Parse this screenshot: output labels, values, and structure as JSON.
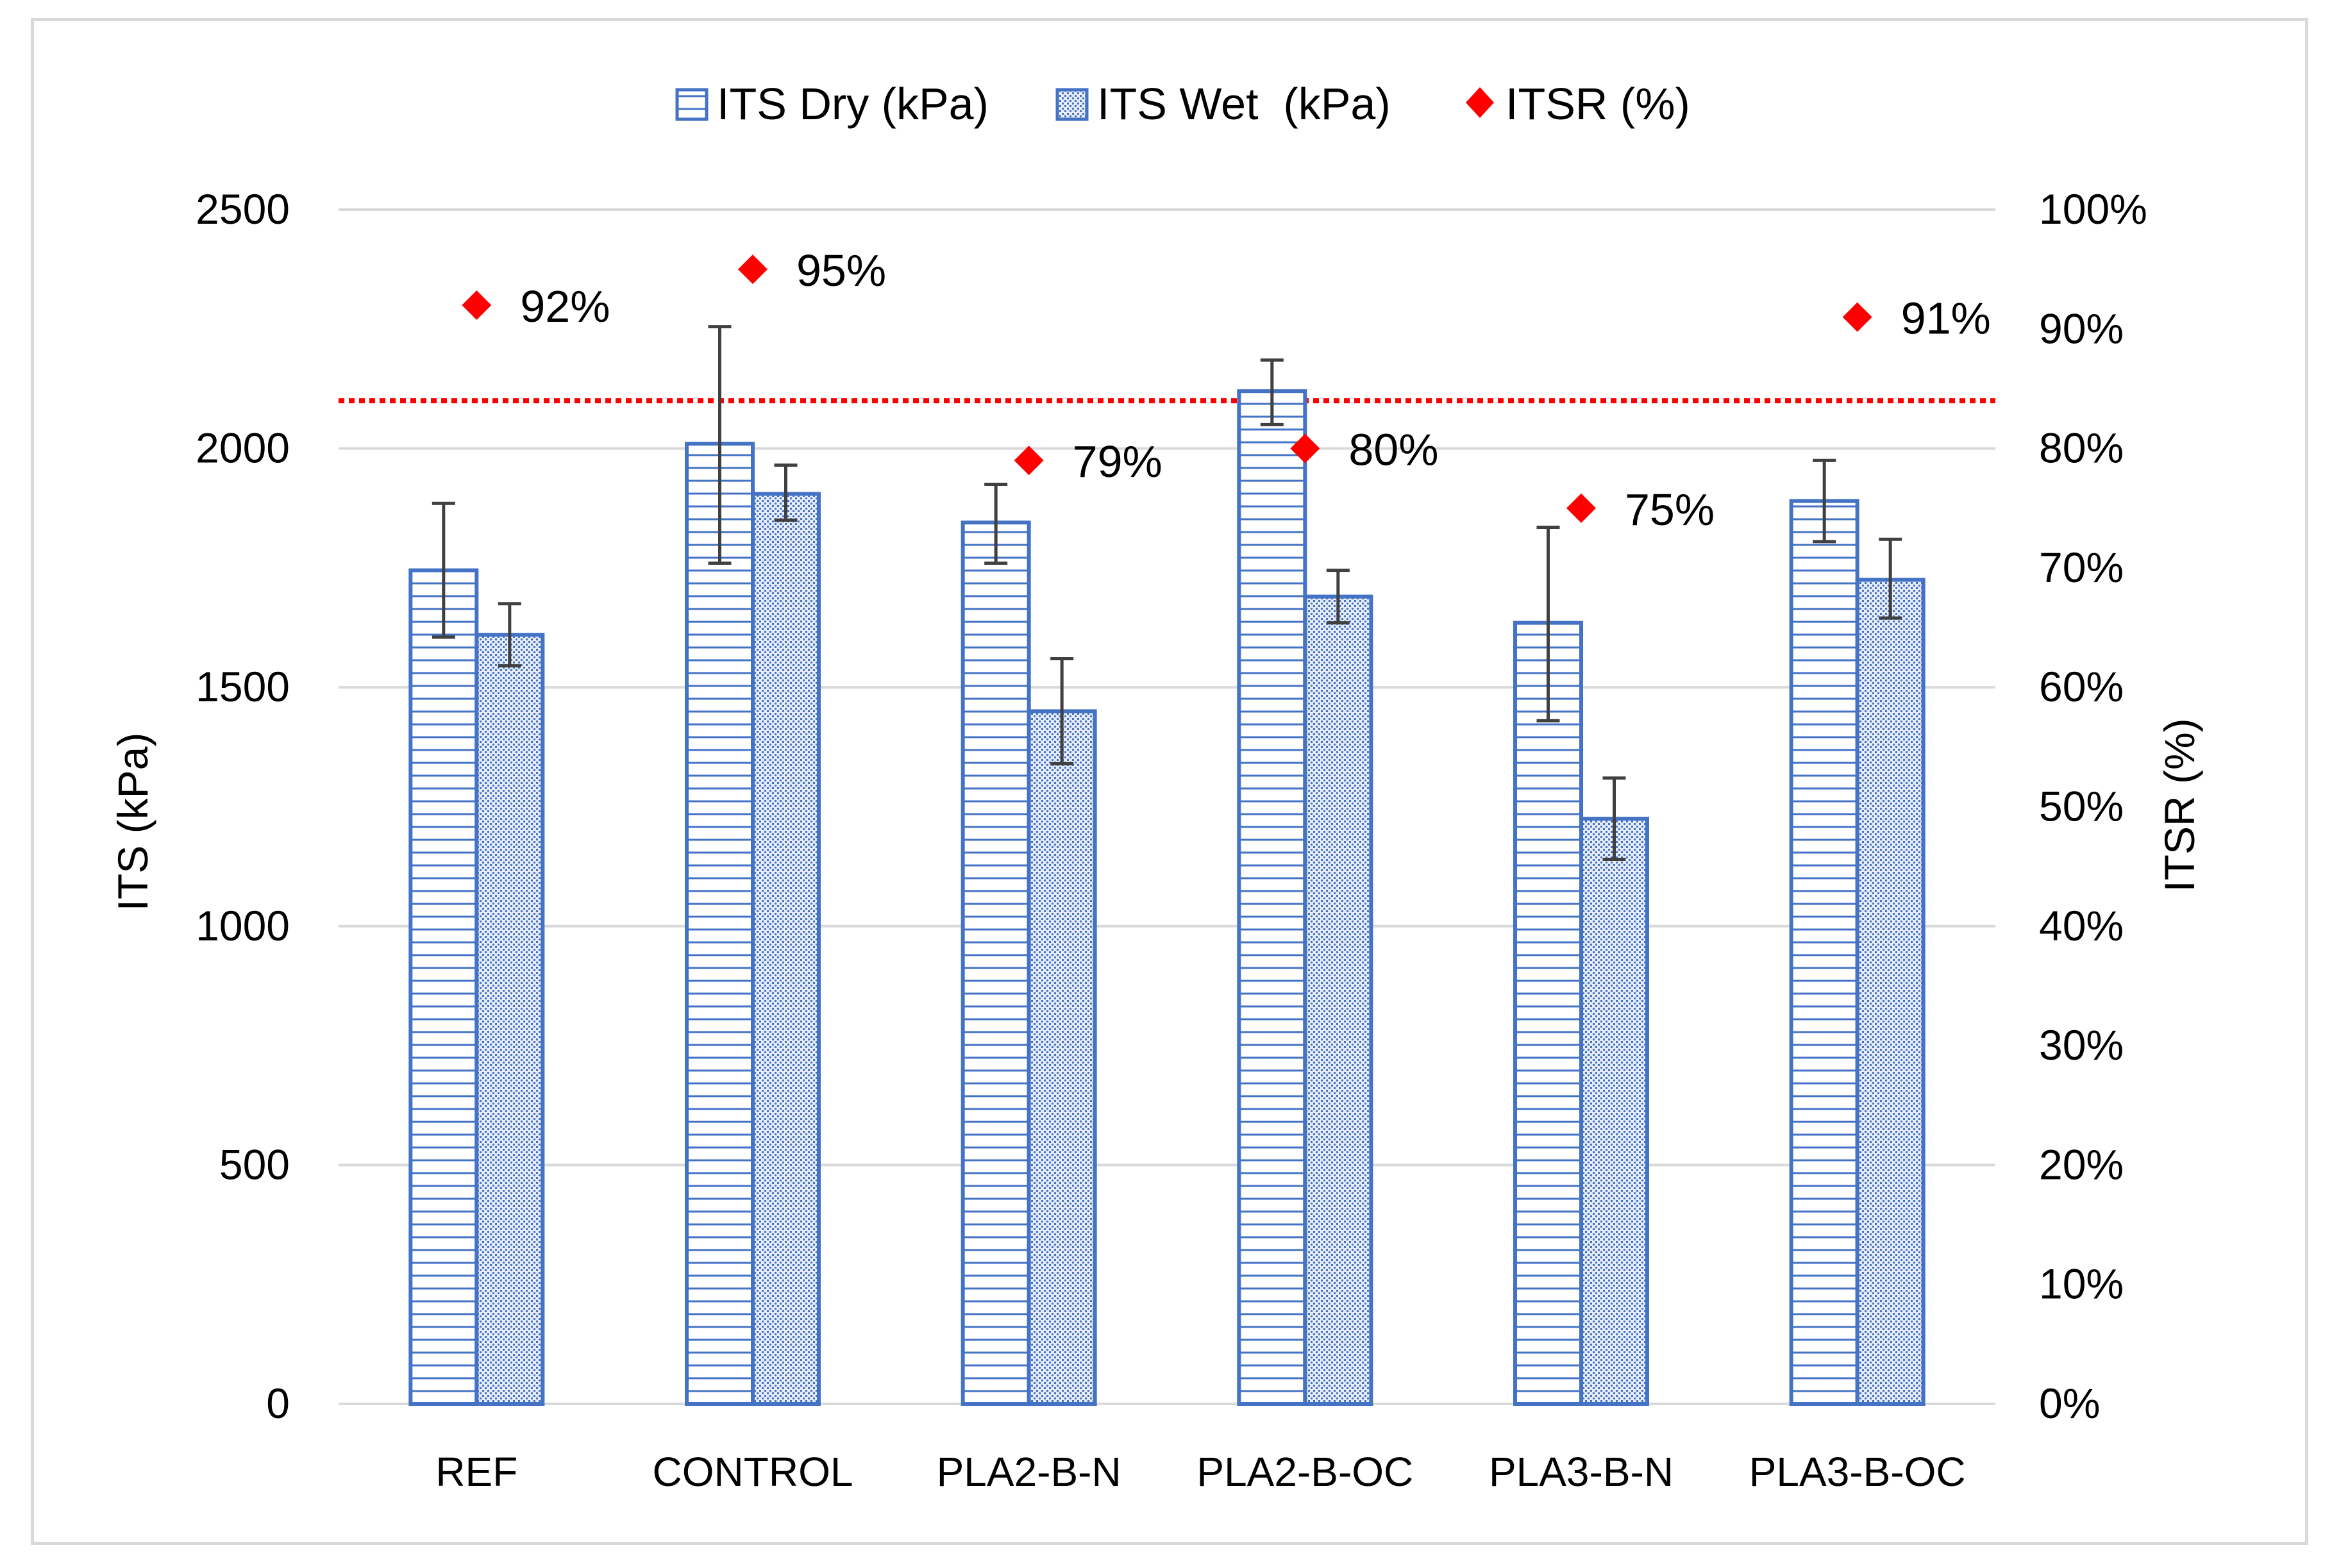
{
  "chart_data": {
    "type": "bar",
    "title": "",
    "categories": [
      "REF",
      "CONTROL",
      "PLA2-B-N",
      "PLA2-B-OC",
      "PLA3-B-N",
      "PLA3-B-OC"
    ],
    "series": [
      {
        "name": "ITS Dry (kPa)",
        "axis": "left",
        "pattern": "horizontal-lines",
        "values": [
          1745,
          2010,
          1845,
          2120,
          1635,
          1890
        ],
        "error_low": [
          1605,
          1760,
          1760,
          2050,
          1430,
          1805
        ],
        "error_high": [
          1885,
          2255,
          1925,
          2185,
          1835,
          1975
        ]
      },
      {
        "name": "ITS Wet  (kPa)",
        "axis": "left",
        "pattern": "dots",
        "values": [
          1610,
          1905,
          1450,
          1690,
          1225,
          1725
        ],
        "error_low": [
          1545,
          1850,
          1340,
          1635,
          1140,
          1645
        ],
        "error_high": [
          1675,
          1965,
          1560,
          1745,
          1310,
          1810
        ]
      },
      {
        "name": "ITSR (%)",
        "axis": "right",
        "marker": "diamond",
        "values": [
          92,
          95,
          79,
          80,
          75,
          91
        ],
        "labels": [
          "92%",
          "95%",
          "79%",
          "80%",
          "75%",
          "91%"
        ]
      }
    ],
    "threshold_line": {
      "axis": "right",
      "value": 84,
      "style": "dotted"
    },
    "y_left": {
      "label": "ITS (kPa)",
      "ylim": [
        0,
        2500
      ],
      "ticks": [
        "0",
        "500",
        "1000",
        "1500",
        "2000",
        "2500"
      ]
    },
    "y_right": {
      "label": "ITSR (%)",
      "ylim": [
        0,
        100
      ],
      "ticks": [
        "0%",
        "10%",
        "20%",
        "30%",
        "40%",
        "50%",
        "60%",
        "70%",
        "80%",
        "90%",
        "100%"
      ]
    },
    "grid": true,
    "legend": "top",
    "colors": {
      "bar_stroke": "#4472c4",
      "marker": "#ff0000",
      "threshold": "#ff0000",
      "grid": "#d9d9d9",
      "error_bar": "#404040"
    }
  }
}
